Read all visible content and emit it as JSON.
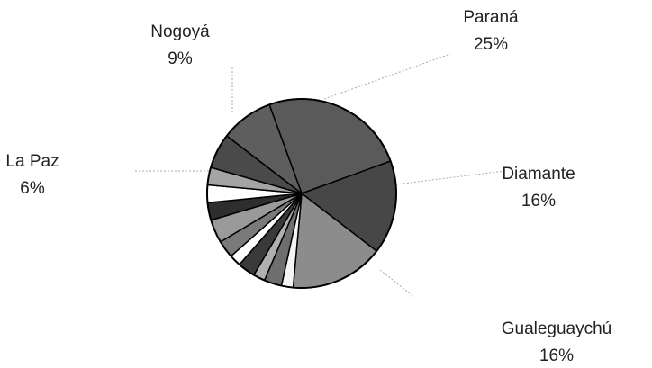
{
  "chart_data": {
    "type": "pie",
    "categories": [
      "Paraná",
      "Diamante",
      "Gualeguaychú",
      null,
      null,
      null,
      null,
      null,
      null,
      null,
      null,
      null,
      null,
      "La Paz",
      "Nogoyá"
    ],
    "values": [
      25,
      16,
      16,
      2,
      3,
      2,
      3,
      2,
      3,
      4,
      3,
      3,
      3,
      6,
      9
    ],
    "value_labels": [
      "25%",
      "16%",
      "16%",
      null,
      null,
      null,
      null,
      null,
      null,
      null,
      null,
      null,
      null,
      "6%",
      "9%"
    ],
    "colors": [
      "#5a5a5a",
      "#474747",
      "#8c8c8c",
      "#f4f4f4",
      "#6e6e6e",
      "#b0b0b0",
      "#3a3a3a",
      "#ffffff",
      "#7a7a7a",
      "#9a9a9a",
      "#2e2e2e",
      "#ffffff",
      "#a4a4a4",
      "#4a4a4a",
      "#5e5e5e"
    ]
  }
}
